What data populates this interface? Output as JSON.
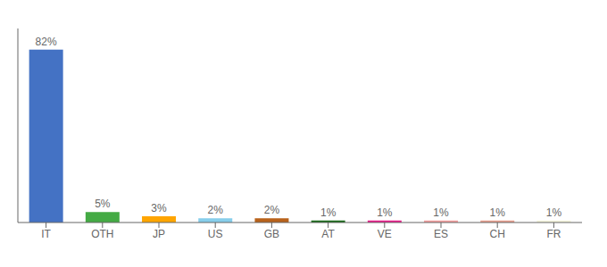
{
  "chart_data": {
    "type": "bar",
    "categories": [
      "IT",
      "OTH",
      "JP",
      "US",
      "GB",
      "AT",
      "VE",
      "ES",
      "CH",
      "FR"
    ],
    "values": [
      82,
      5,
      3,
      2,
      2,
      1,
      1,
      1,
      1,
      1
    ],
    "value_labels": [
      "82%",
      "5%",
      "3%",
      "2%",
      "2%",
      "1%",
      "1%",
      "1%",
      "1%",
      "1%"
    ],
    "colors": [
      "#4472C4",
      "#44AA44",
      "#FFA500",
      "#87CEEB",
      "#B8621B",
      "#1A6B1A",
      "#E91E8C",
      "#F4A0A0",
      "#E8A090",
      "#F5F5DC"
    ],
    "ylim": [
      0,
      92
    ],
    "data_labels": true,
    "tick_labels": "x",
    "grid": false
  }
}
